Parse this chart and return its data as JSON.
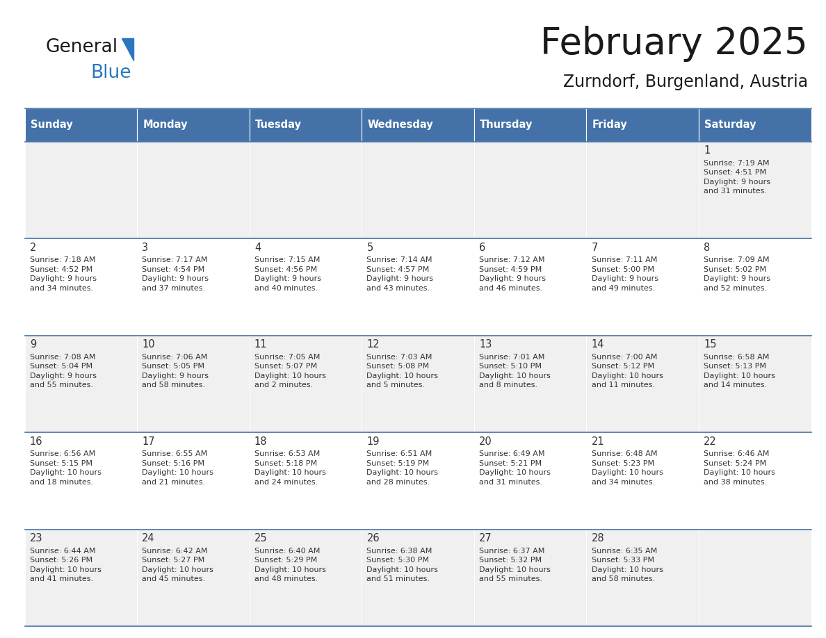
{
  "title": "February 2025",
  "subtitle": "Zurndorf, Burgenland, Austria",
  "header_bg": "#4472a8",
  "header_text": "#ffffff",
  "day_names": [
    "Sunday",
    "Monday",
    "Tuesday",
    "Wednesday",
    "Thursday",
    "Friday",
    "Saturday"
  ],
  "row_bg_even": "#f0f0f0",
  "row_bg_odd": "#ffffff",
  "cell_border_color": "#4472a8",
  "text_color": "#333333",
  "day_num_color": "#333333",
  "logo_general_color": "#1a1a1a",
  "logo_blue_color": "#2878c0",
  "logo_tri_color": "#2878c0",
  "title_color": "#1a1a1a",
  "days": [
    {
      "day": 1,
      "col": 6,
      "row": 0,
      "sunrise": "7:19 AM",
      "sunset": "4:51 PM",
      "daylight": "9 hours and 31 minutes."
    },
    {
      "day": 2,
      "col": 0,
      "row": 1,
      "sunrise": "7:18 AM",
      "sunset": "4:52 PM",
      "daylight": "9 hours and 34 minutes."
    },
    {
      "day": 3,
      "col": 1,
      "row": 1,
      "sunrise": "7:17 AM",
      "sunset": "4:54 PM",
      "daylight": "9 hours and 37 minutes."
    },
    {
      "day": 4,
      "col": 2,
      "row": 1,
      "sunrise": "7:15 AM",
      "sunset": "4:56 PM",
      "daylight": "9 hours and 40 minutes."
    },
    {
      "day": 5,
      "col": 3,
      "row": 1,
      "sunrise": "7:14 AM",
      "sunset": "4:57 PM",
      "daylight": "9 hours and 43 minutes."
    },
    {
      "day": 6,
      "col": 4,
      "row": 1,
      "sunrise": "7:12 AM",
      "sunset": "4:59 PM",
      "daylight": "9 hours and 46 minutes."
    },
    {
      "day": 7,
      "col": 5,
      "row": 1,
      "sunrise": "7:11 AM",
      "sunset": "5:00 PM",
      "daylight": "9 hours and 49 minutes."
    },
    {
      "day": 8,
      "col": 6,
      "row": 1,
      "sunrise": "7:09 AM",
      "sunset": "5:02 PM",
      "daylight": "9 hours and 52 minutes."
    },
    {
      "day": 9,
      "col": 0,
      "row": 2,
      "sunrise": "7:08 AM",
      "sunset": "5:04 PM",
      "daylight": "9 hours and 55 minutes."
    },
    {
      "day": 10,
      "col": 1,
      "row": 2,
      "sunrise": "7:06 AM",
      "sunset": "5:05 PM",
      "daylight": "9 hours and 58 minutes."
    },
    {
      "day": 11,
      "col": 2,
      "row": 2,
      "sunrise": "7:05 AM",
      "sunset": "5:07 PM",
      "daylight": "10 hours and 2 minutes."
    },
    {
      "day": 12,
      "col": 3,
      "row": 2,
      "sunrise": "7:03 AM",
      "sunset": "5:08 PM",
      "daylight": "10 hours and 5 minutes."
    },
    {
      "day": 13,
      "col": 4,
      "row": 2,
      "sunrise": "7:01 AM",
      "sunset": "5:10 PM",
      "daylight": "10 hours and 8 minutes."
    },
    {
      "day": 14,
      "col": 5,
      "row": 2,
      "sunrise": "7:00 AM",
      "sunset": "5:12 PM",
      "daylight": "10 hours and 11 minutes."
    },
    {
      "day": 15,
      "col": 6,
      "row": 2,
      "sunrise": "6:58 AM",
      "sunset": "5:13 PM",
      "daylight": "10 hours and 14 minutes."
    },
    {
      "day": 16,
      "col": 0,
      "row": 3,
      "sunrise": "6:56 AM",
      "sunset": "5:15 PM",
      "daylight": "10 hours and 18 minutes."
    },
    {
      "day": 17,
      "col": 1,
      "row": 3,
      "sunrise": "6:55 AM",
      "sunset": "5:16 PM",
      "daylight": "10 hours and 21 minutes."
    },
    {
      "day": 18,
      "col": 2,
      "row": 3,
      "sunrise": "6:53 AM",
      "sunset": "5:18 PM",
      "daylight": "10 hours and 24 minutes."
    },
    {
      "day": 19,
      "col": 3,
      "row": 3,
      "sunrise": "6:51 AM",
      "sunset": "5:19 PM",
      "daylight": "10 hours and 28 minutes."
    },
    {
      "day": 20,
      "col": 4,
      "row": 3,
      "sunrise": "6:49 AM",
      "sunset": "5:21 PM",
      "daylight": "10 hours and 31 minutes."
    },
    {
      "day": 21,
      "col": 5,
      "row": 3,
      "sunrise": "6:48 AM",
      "sunset": "5:23 PM",
      "daylight": "10 hours and 34 minutes."
    },
    {
      "day": 22,
      "col": 6,
      "row": 3,
      "sunrise": "6:46 AM",
      "sunset": "5:24 PM",
      "daylight": "10 hours and 38 minutes."
    },
    {
      "day": 23,
      "col": 0,
      "row": 4,
      "sunrise": "6:44 AM",
      "sunset": "5:26 PM",
      "daylight": "10 hours and 41 minutes."
    },
    {
      "day": 24,
      "col": 1,
      "row": 4,
      "sunrise": "6:42 AM",
      "sunset": "5:27 PM",
      "daylight": "10 hours and 45 minutes."
    },
    {
      "day": 25,
      "col": 2,
      "row": 4,
      "sunrise": "6:40 AM",
      "sunset": "5:29 PM",
      "daylight": "10 hours and 48 minutes."
    },
    {
      "day": 26,
      "col": 3,
      "row": 4,
      "sunrise": "6:38 AM",
      "sunset": "5:30 PM",
      "daylight": "10 hours and 51 minutes."
    },
    {
      "day": 27,
      "col": 4,
      "row": 4,
      "sunrise": "6:37 AM",
      "sunset": "5:32 PM",
      "daylight": "10 hours and 55 minutes."
    },
    {
      "day": 28,
      "col": 5,
      "row": 4,
      "sunrise": "6:35 AM",
      "sunset": "5:33 PM",
      "daylight": "10 hours and 58 minutes."
    }
  ]
}
